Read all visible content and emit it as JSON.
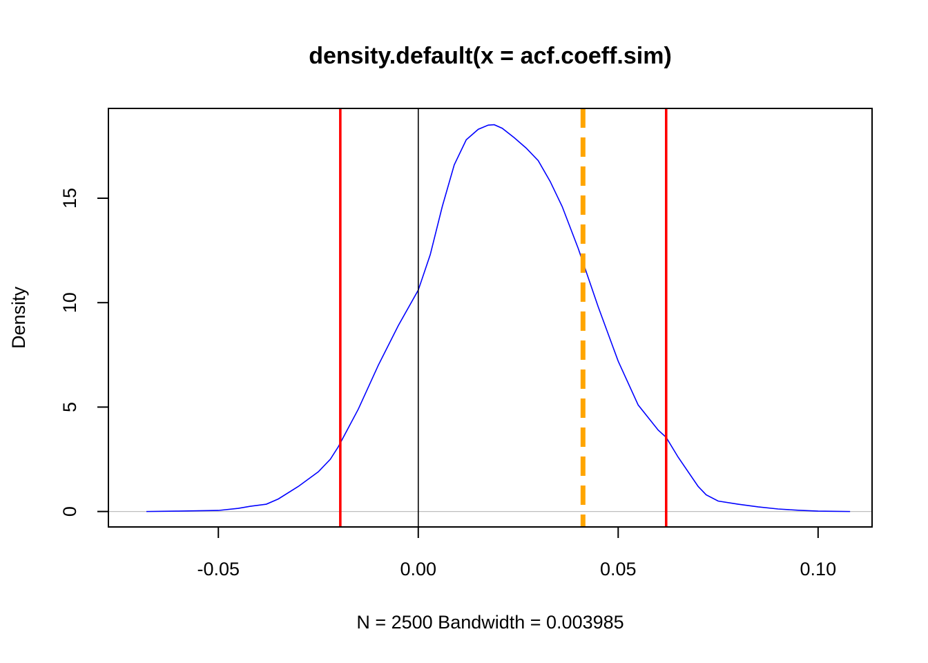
{
  "chart_data": {
    "type": "line",
    "title": "density.default(x = acf.coeff.sim)",
    "xlabel": "N = 2500   Bandwidth = 0.003985",
    "ylabel": "Density",
    "xlim": [
      -0.0775,
      0.1135
    ],
    "ylim": [
      -0.74,
      19.3
    ],
    "grid": false,
    "legend": "none",
    "x_ticks": [
      {
        "value": -0.05,
        "label": "-0.05"
      },
      {
        "value": 0.0,
        "label": "0.00"
      },
      {
        "value": 0.05,
        "label": "0.05"
      },
      {
        "value": 0.1,
        "label": "0.10"
      }
    ],
    "y_ticks": [
      {
        "value": 0,
        "label": "0"
      },
      {
        "value": 5,
        "label": "5"
      },
      {
        "value": 10,
        "label": "10"
      },
      {
        "value": 15,
        "label": "15"
      }
    ],
    "series": [
      {
        "color": "#0000ff",
        "x": [
          -0.068,
          -0.06,
          -0.05,
          -0.045,
          -0.042,
          -0.038,
          -0.035,
          -0.03,
          -0.025,
          -0.022,
          -0.02,
          -0.015,
          -0.01,
          -0.005,
          0.0,
          0.003,
          0.006,
          0.009,
          0.012,
          0.015,
          0.0175,
          0.019,
          0.021,
          0.024,
          0.027,
          0.03,
          0.033,
          0.036,
          0.04,
          0.045,
          0.05,
          0.055,
          0.06,
          0.062,
          0.065,
          0.07,
          0.072,
          0.075,
          0.08,
          0.085,
          0.09,
          0.095,
          0.1,
          0.108
        ],
        "y": [
          0,
          0.02,
          0.05,
          0.15,
          0.25,
          0.35,
          0.6,
          1.2,
          1.9,
          2.5,
          3.1,
          4.9,
          7.0,
          8.9,
          10.6,
          12.3,
          14.6,
          16.6,
          17.8,
          18.3,
          18.5,
          18.52,
          18.35,
          17.9,
          17.4,
          16.8,
          15.8,
          14.6,
          12.6,
          9.8,
          7.2,
          5.1,
          3.9,
          3.55,
          2.6,
          1.2,
          0.8,
          0.5,
          0.35,
          0.22,
          0.12,
          0.06,
          0.02,
          0
        ]
      }
    ],
    "reference_lines": [
      {
        "orientation": "horizontal",
        "value": 0,
        "color": "#bebebe",
        "style": "solid"
      },
      {
        "orientation": "vertical",
        "value": 0.0,
        "color": "#000000",
        "style": "solid"
      },
      {
        "orientation": "vertical",
        "value": -0.0195,
        "color": "#ff0000",
        "style": "solid"
      },
      {
        "orientation": "vertical",
        "value": 0.062,
        "color": "#ff0000",
        "style": "solid"
      },
      {
        "orientation": "vertical",
        "value": 0.0412,
        "color": "#ffa500",
        "style": "dashed"
      }
    ]
  }
}
